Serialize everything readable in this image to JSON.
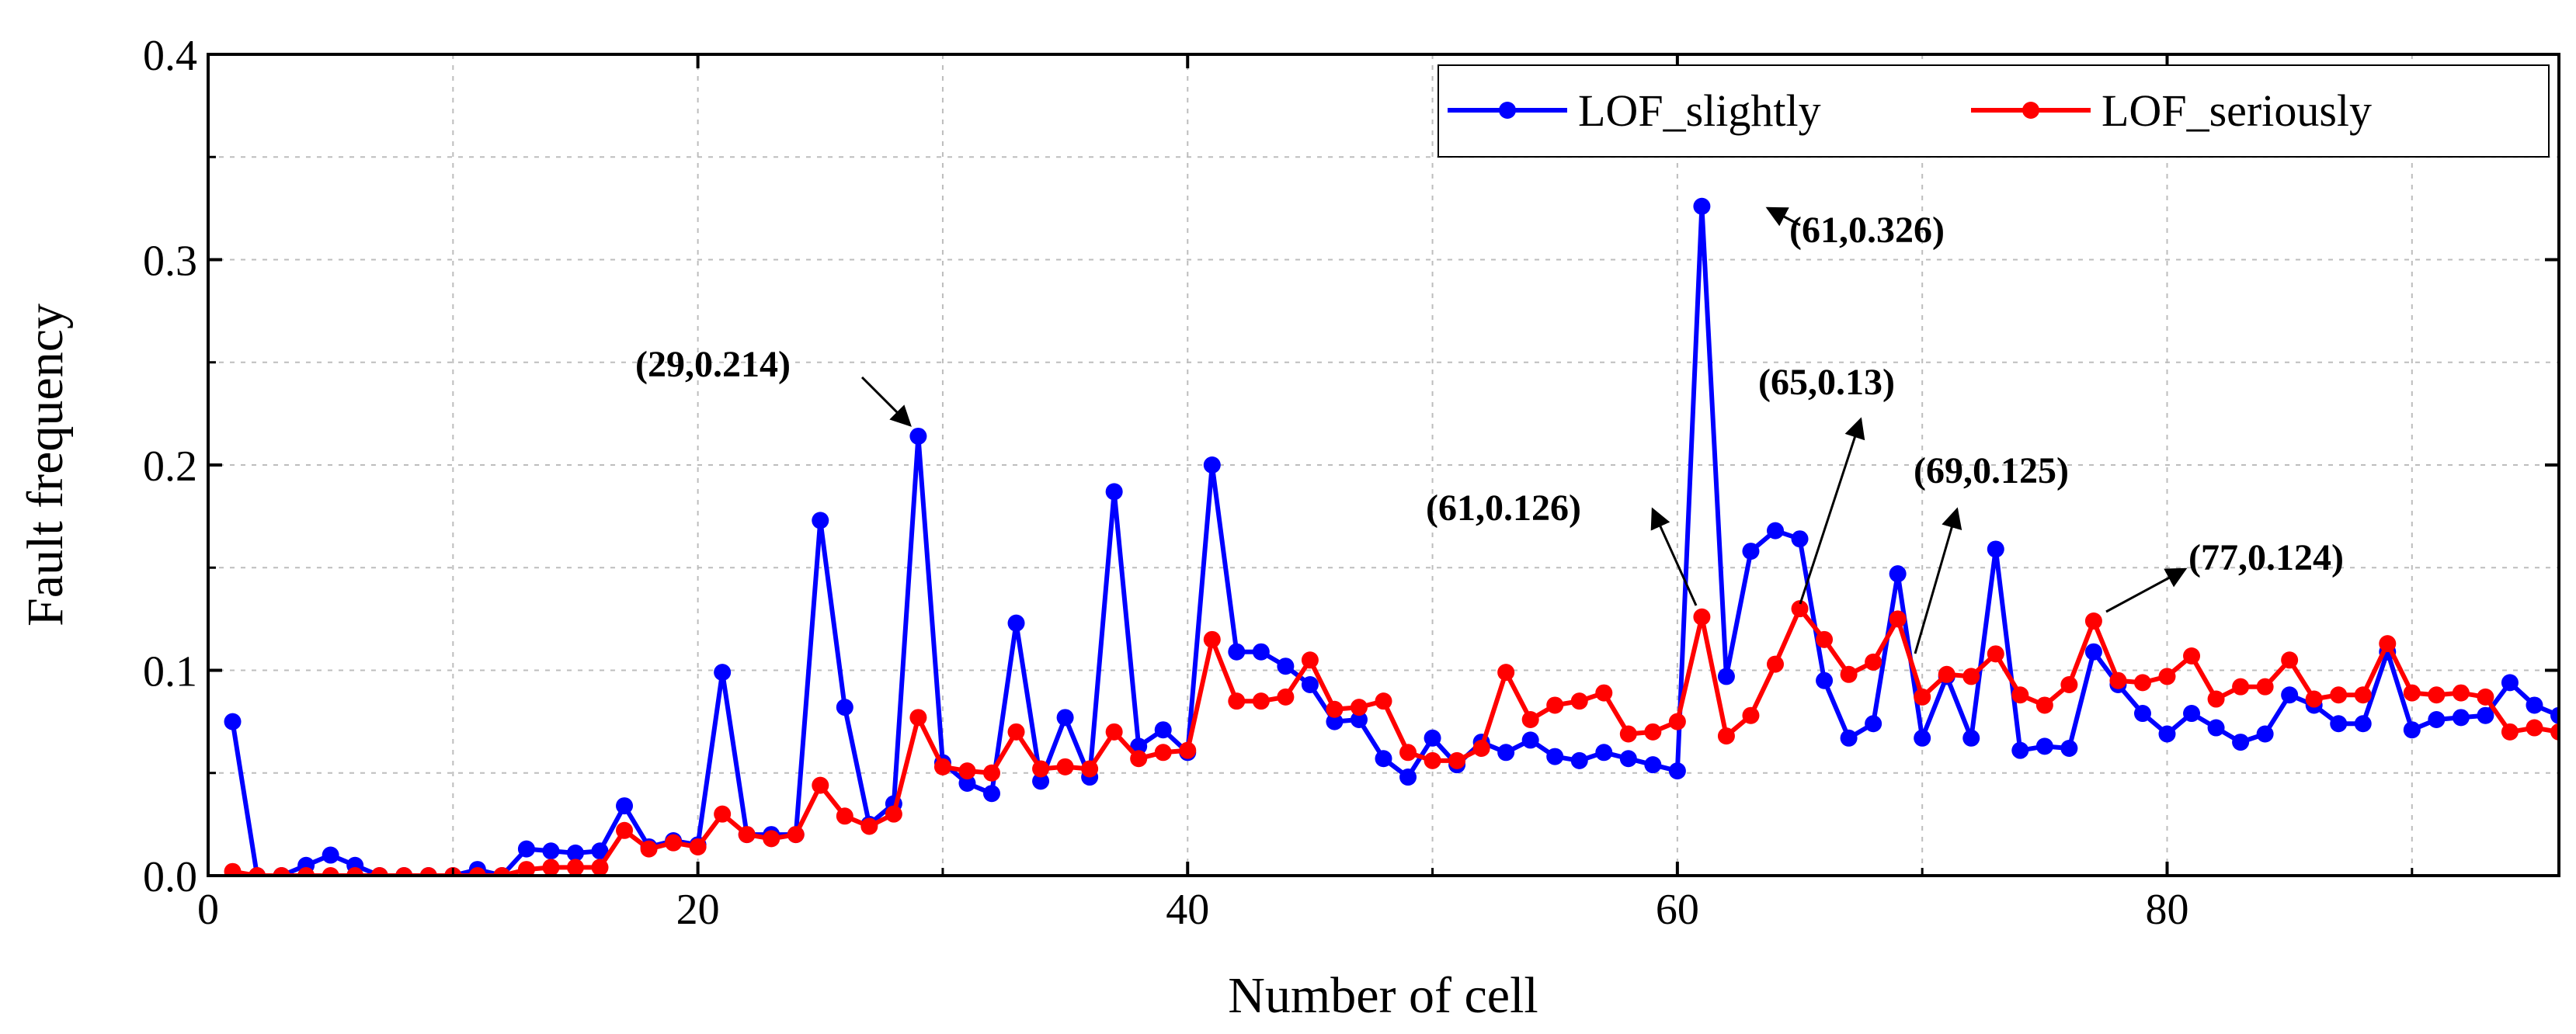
{
  "chart_data": {
    "type": "line",
    "title": "",
    "xlabel": "Number of cell",
    "ylabel": "Fault frequency",
    "xlim": [
      0,
      96
    ],
    "ylim": [
      0,
      0.4
    ],
    "xticks": [
      0,
      20,
      40,
      60,
      80
    ],
    "xtick_labels": [
      "0",
      "20",
      "40",
      "60",
      "80"
    ],
    "yticks": [
      0,
      0.1,
      0.2,
      0.3,
      0.4
    ],
    "ytick_labels": [
      "0.0",
      "0.1",
      "0.2",
      "0.3",
      "0.4"
    ],
    "grid": true,
    "legend_position": "top-right",
    "x": [
      1,
      2,
      3,
      4,
      5,
      6,
      7,
      8,
      9,
      10,
      11,
      12,
      13,
      14,
      15,
      16,
      17,
      18,
      19,
      20,
      21,
      22,
      23,
      24,
      25,
      26,
      27,
      28,
      29,
      30,
      31,
      32,
      33,
      34,
      35,
      36,
      37,
      38,
      39,
      40,
      41,
      42,
      43,
      44,
      45,
      46,
      47,
      48,
      49,
      50,
      51,
      52,
      53,
      54,
      55,
      56,
      57,
      58,
      59,
      60,
      61,
      62,
      63,
      64,
      65,
      66,
      67,
      68,
      69,
      70,
      71,
      72,
      73,
      74,
      75,
      76,
      77,
      78,
      79,
      80,
      81,
      82,
      83,
      84,
      85,
      86,
      87,
      88,
      89,
      90,
      91,
      92,
      93,
      94,
      95,
      96
    ],
    "series": [
      {
        "name": "LOF_slightly",
        "color": "#0000ff",
        "values": [
          0.075,
          0.0,
          0.0,
          0.005,
          0.01,
          0.005,
          0.0,
          0.0,
          0.0,
          0.0,
          0.003,
          0.0,
          0.013,
          0.012,
          0.011,
          0.012,
          0.034,
          0.014,
          0.017,
          0.015,
          0.099,
          0.02,
          0.02,
          0.02,
          0.173,
          0.082,
          0.025,
          0.035,
          0.214,
          0.055,
          0.045,
          0.04,
          0.123,
          0.046,
          0.077,
          0.048,
          0.187,
          0.063,
          0.071,
          0.06,
          0.2,
          0.109,
          0.109,
          0.102,
          0.093,
          0.075,
          0.076,
          0.057,
          0.048,
          0.067,
          0.054,
          0.065,
          0.06,
          0.066,
          0.058,
          0.056,
          0.06,
          0.057,
          0.054,
          0.051,
          0.326,
          0.097,
          0.158,
          0.168,
          0.164,
          0.095,
          0.067,
          0.074,
          0.147,
          0.067,
          0.097,
          0.067,
          0.159,
          0.061,
          0.063,
          0.062,
          0.109,
          0.093,
          0.079,
          0.069,
          0.079,
          0.072,
          0.065,
          0.069,
          0.088,
          0.083,
          0.074,
          0.074,
          0.109,
          0.071,
          0.076,
          0.077,
          0.078,
          0.094,
          0.083,
          0.078
        ]
      },
      {
        "name": "LOF_seriously",
        "color": "#ff0000",
        "values": [
          0.002,
          0.0,
          0.0,
          0.0,
          0.0,
          0.0,
          0.0,
          0.0,
          0.0,
          0.0,
          0.0,
          0.0,
          0.003,
          0.004,
          0.004,
          0.004,
          0.022,
          0.013,
          0.016,
          0.014,
          0.03,
          0.02,
          0.018,
          0.02,
          0.044,
          0.029,
          0.024,
          0.03,
          0.077,
          0.053,
          0.051,
          0.05,
          0.07,
          0.052,
          0.053,
          0.052,
          0.07,
          0.057,
          0.06,
          0.061,
          0.115,
          0.085,
          0.085,
          0.087,
          0.105,
          0.081,
          0.082,
          0.085,
          0.06,
          0.056,
          0.056,
          0.062,
          0.099,
          0.076,
          0.083,
          0.085,
          0.089,
          0.069,
          0.07,
          0.075,
          0.126,
          0.068,
          0.078,
          0.103,
          0.13,
          0.115,
          0.098,
          0.104,
          0.125,
          0.087,
          0.098,
          0.097,
          0.108,
          0.088,
          0.083,
          0.093,
          0.124,
          0.095,
          0.094,
          0.097,
          0.107,
          0.086,
          0.092,
          0.092,
          0.105,
          0.086,
          0.088,
          0.088,
          0.113,
          0.089,
          0.088,
          0.089,
          0.087,
          0.07,
          0.072,
          0.07
        ]
      }
    ],
    "annotations": [
      {
        "text": "(29,0.214)",
        "x": 29,
        "y": 0.214
      },
      {
        "text": "(61,0.326)",
        "x": 61,
        "y": 0.326
      },
      {
        "text": "(65,0.13)",
        "x": 65,
        "y": 0.13
      },
      {
        "text": "(61,0.126)",
        "x": 61,
        "y": 0.126
      },
      {
        "text": "(69,0.125)",
        "x": 69,
        "y": 0.125
      },
      {
        "text": "(77,0.124)",
        "x": 77,
        "y": 0.124
      }
    ]
  }
}
